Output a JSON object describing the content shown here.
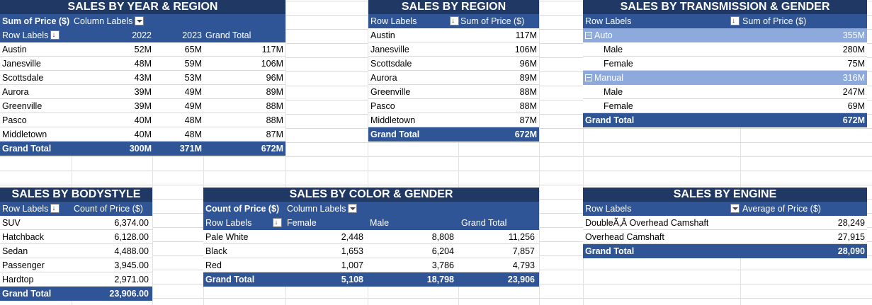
{
  "year_region": {
    "title": "SALES BY YEAR &  REGION",
    "measure": "Sum of Price ($)",
    "col_labels": "Column Labels",
    "row_labels": "Row Labels",
    "years": [
      "2022",
      "2023",
      "Grand Total"
    ],
    "rows": [
      {
        "label": "Austin",
        "y2022": "52M",
        "y2023": "65M",
        "total": "117M"
      },
      {
        "label": "Janesville",
        "y2022": "48M",
        "y2023": "59M",
        "total": "106M"
      },
      {
        "label": "Scottsdale",
        "y2022": "43M",
        "y2023": "53M",
        "total": "96M"
      },
      {
        "label": "Aurora",
        "y2022": "39M",
        "y2023": "49M",
        "total": "89M"
      },
      {
        "label": "Greenville",
        "y2022": "39M",
        "y2023": "49M",
        "total": "88M"
      },
      {
        "label": "Pasco",
        "y2022": "40M",
        "y2023": "48M",
        "total": "88M"
      },
      {
        "label": "Middletown",
        "y2022": "40M",
        "y2023": "48M",
        "total": "87M"
      }
    ],
    "grand": {
      "label": "Grand Total",
      "y2022": "300M",
      "y2023": "371M",
      "total": "672M"
    }
  },
  "region": {
    "title": "SALES BY  REGION",
    "row_labels": "Row Labels",
    "measure": "Sum of Price ($)",
    "rows": [
      {
        "label": "Austin",
        "value": "117M"
      },
      {
        "label": "Janesville",
        "value": "106M"
      },
      {
        "label": "Scottsdale",
        "value": "96M"
      },
      {
        "label": "Aurora",
        "value": "89M"
      },
      {
        "label": "Greenville",
        "value": "88M"
      },
      {
        "label": "Pasco",
        "value": "88M"
      },
      {
        "label": "Middletown",
        "value": "87M"
      }
    ],
    "grand": {
      "label": "Grand Total",
      "value": "672M"
    }
  },
  "transmission": {
    "title": "SALES BY  TRANSMISSION & GENDER",
    "row_labels": "Row Labels",
    "measure": "Sum of Price ($)",
    "groups": [
      {
        "label": "Auto",
        "value": "355M",
        "children": [
          {
            "label": "Male",
            "value": "280M"
          },
          {
            "label": "Female",
            "value": "75M"
          }
        ]
      },
      {
        "label": "Manual",
        "value": "316M",
        "children": [
          {
            "label": "Male",
            "value": "247M"
          },
          {
            "label": "Female",
            "value": "69M"
          }
        ]
      }
    ],
    "grand": {
      "label": "Grand Total",
      "value": "672M"
    }
  },
  "bodystyle": {
    "title": "SALES BY  BODYSTYLE",
    "row_labels": "Row Labels",
    "measure": "Count of Price ($)",
    "rows": [
      {
        "label": "SUV",
        "value": "6,374.00"
      },
      {
        "label": "Hatchback",
        "value": "6,128.00"
      },
      {
        "label": "Sedan",
        "value": "4,488.00"
      },
      {
        "label": "Passenger",
        "value": "3,945.00"
      },
      {
        "label": "Hardtop",
        "value": "2,971.00"
      }
    ],
    "grand": {
      "label": "Grand Total",
      "value": "23,906.00"
    }
  },
  "color_gender": {
    "title": "SALES BY  COLOR & GENDER",
    "measure": "Count of Price ($)",
    "col_labels": "Column Labels",
    "row_labels": "Row Labels",
    "cols": [
      "Female",
      "Male",
      "Grand Total"
    ],
    "rows": [
      {
        "label": "Pale White",
        "female": "2,448",
        "male": "8,808",
        "total": "11,256"
      },
      {
        "label": "Black",
        "female": "1,653",
        "male": "6,204",
        "total": "7,857"
      },
      {
        "label": "Red",
        "female": "1,007",
        "male": "3,786",
        "total": "4,793"
      }
    ],
    "grand": {
      "label": "Grand Total",
      "female": "5,108",
      "male": "18,798",
      "total": "23,906"
    }
  },
  "engine": {
    "title": "SALES BY  ENGINE",
    "row_labels": "Row Labels",
    "measure": "Average of Price ($)",
    "rows": [
      {
        "label": "DoubleÃ‚Â Overhead Camshaft",
        "value": "28,249"
      },
      {
        "label": "Overhead Camshaft",
        "value": "27,915"
      }
    ],
    "grand": {
      "label": "Grand Total",
      "value": "28,090"
    }
  }
}
